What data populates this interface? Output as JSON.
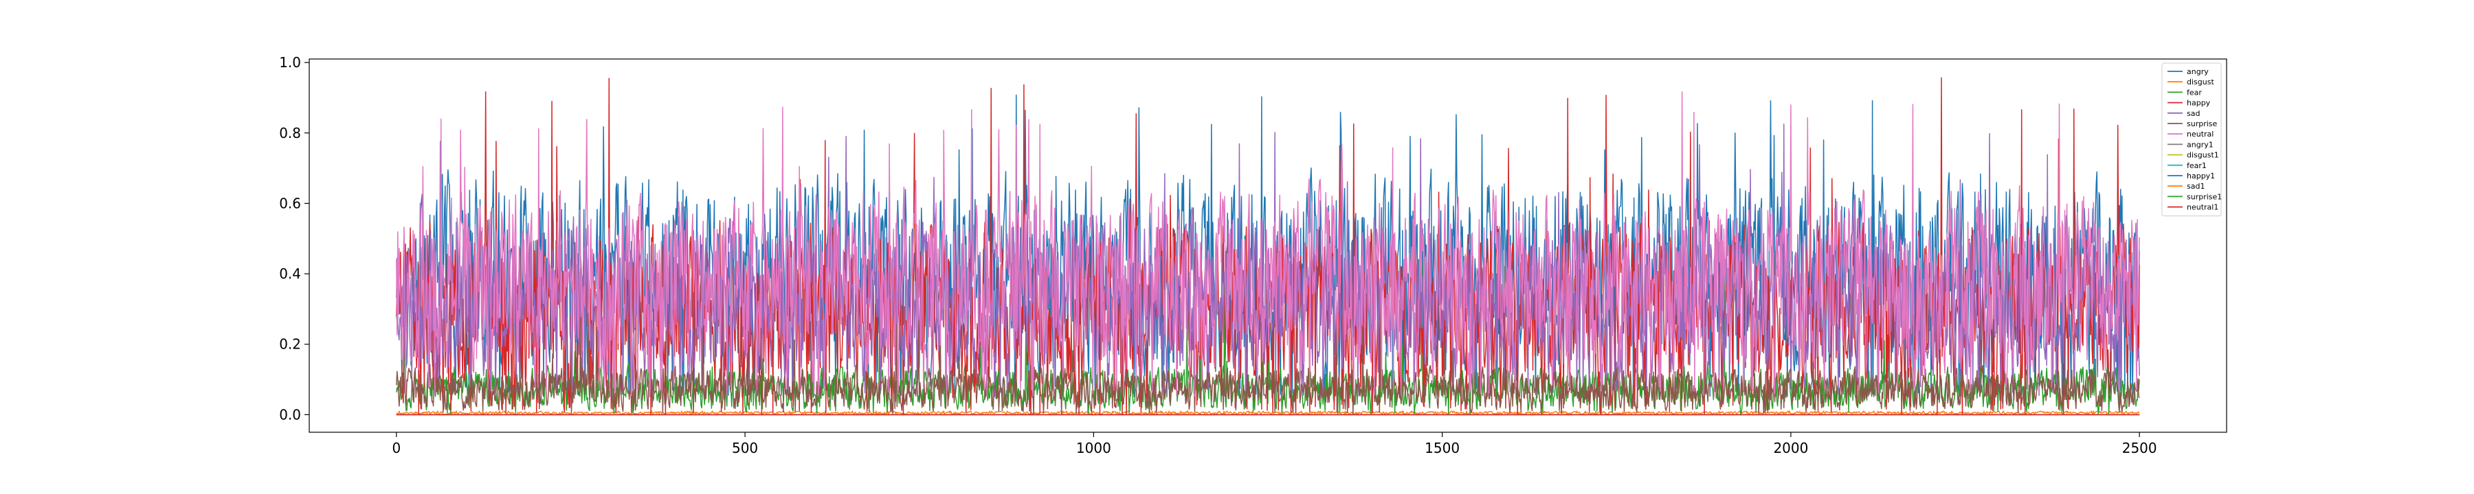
{
  "chart_data": {
    "type": "line",
    "title": "",
    "xlabel": "",
    "ylabel": "",
    "xlim": [
      -125,
      2625
    ],
    "ylim": [
      -0.05,
      1.01
    ],
    "grid": false,
    "legend_location": "upper right",
    "x_ticks": [
      0,
      500,
      1000,
      1500,
      2000,
      2500
    ],
    "x_tick_labels": [
      "0",
      "500",
      "1000",
      "1500",
      "2000",
      "2500"
    ],
    "y_ticks": [
      0.0,
      0.2,
      0.4,
      0.6,
      0.8,
      1.0
    ],
    "y_tick_labels": [
      "0.0",
      "0.2",
      "0.4",
      "0.6",
      "0.8",
      "1.0"
    ],
    "n_points": 2501,
    "series": [
      {
        "name": "angry",
        "color": "#1f77b4",
        "typical_range": [
          0.05,
          0.75
        ],
        "max": 0.91
      },
      {
        "name": "disgust",
        "color": "#ff7f0e",
        "typical_range": [
          0.0,
          0.01
        ],
        "max": 0.01
      },
      {
        "name": "fear",
        "color": "#2ca02c",
        "typical_range": [
          0.0,
          0.15
        ],
        "max": 0.45
      },
      {
        "name": "happy",
        "color": "#d62728",
        "typical_range": [
          0.0,
          0.6
        ],
        "max": 0.96
      },
      {
        "name": "sad",
        "color": "#9467bd",
        "typical_range": [
          0.05,
          0.6
        ],
        "max": 0.86
      },
      {
        "name": "surprise",
        "color": "#8c564b",
        "typical_range": [
          0.0,
          0.15
        ],
        "max": 0.3
      },
      {
        "name": "neutral",
        "color": "#e377c2",
        "typical_range": [
          0.05,
          0.7
        ],
        "max": 0.92
      },
      {
        "name": "angry1",
        "color": "#7f7f7f",
        "typical_range": [
          0.0,
          0.0
        ],
        "max": 0.0
      },
      {
        "name": "disgust1",
        "color": "#bcbd22",
        "typical_range": [
          0.0,
          0.0
        ],
        "max": 0.0
      },
      {
        "name": "fear1",
        "color": "#17becf",
        "typical_range": [
          0.0,
          0.0
        ],
        "max": 0.0
      },
      {
        "name": "happy1",
        "color": "#1f77b4",
        "typical_range": [
          0.0,
          0.0
        ],
        "max": 0.0
      },
      {
        "name": "sad1",
        "color": "#ff7f0e",
        "typical_range": [
          0.0,
          0.0
        ],
        "max": 0.0
      },
      {
        "name": "surprise1",
        "color": "#2ca02c",
        "typical_range": [
          0.0,
          0.0
        ],
        "max": 0.0
      },
      {
        "name": "neutral1",
        "color": "#d62728",
        "typical_range": [
          0.0,
          0.0
        ],
        "max": 0.0
      }
    ]
  }
}
